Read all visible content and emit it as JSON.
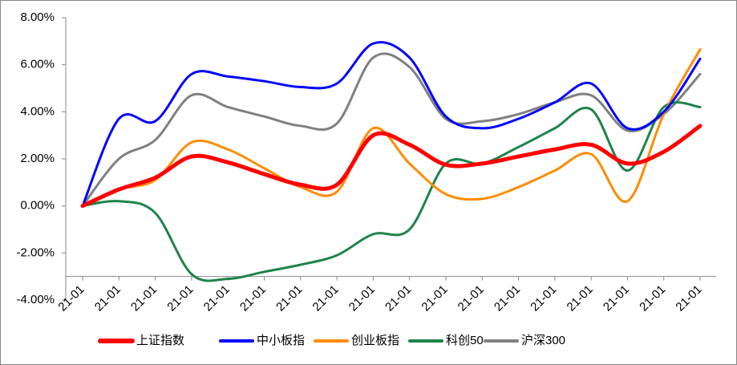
{
  "chart_data": {
    "type": "line",
    "categories": [
      "21-01",
      "21-01",
      "21-01",
      "21-01",
      "21-01",
      "21-01",
      "21-01",
      "21-01",
      "21-01",
      "21-01",
      "21-01",
      "21-01",
      "21-01",
      "21-01",
      "21-01",
      "21-01",
      "21-01",
      "21-01"
    ],
    "series": [
      {
        "name": "上证指数",
        "color": "#ff0000",
        "values": [
          0,
          0.7,
          1.2,
          2.1,
          1.85,
          1.35,
          0.9,
          0.9,
          3.0,
          2.6,
          1.75,
          1.8,
          2.1,
          2.4,
          2.6,
          1.8,
          2.3,
          3.4
        ]
      },
      {
        "name": "中小板指",
        "color": "#0000ff",
        "values": [
          0,
          3.7,
          3.6,
          5.6,
          5.5,
          5.3,
          5.05,
          5.2,
          6.9,
          6.3,
          3.8,
          3.3,
          3.7,
          4.4,
          5.2,
          3.3,
          4.0,
          6.25
        ]
      },
      {
        "name": "创业板指",
        "color": "#ff8c00",
        "values": [
          0,
          0.7,
          1.1,
          2.7,
          2.4,
          1.6,
          0.8,
          0.6,
          3.3,
          1.8,
          0.5,
          0.3,
          0.8,
          1.5,
          2.2,
          0.2,
          3.9,
          6.65
        ]
      },
      {
        "name": "科创50",
        "color": "#1e8449",
        "values": [
          0,
          0.2,
          -0.3,
          -2.9,
          -3.1,
          -2.8,
          -2.5,
          -2.1,
          -1.2,
          -1.0,
          1.8,
          1.8,
          2.5,
          3.3,
          4.1,
          1.5,
          4.2,
          4.2
        ]
      },
      {
        "name": "沪深300",
        "color": "#808080",
        "values": [
          0,
          2.0,
          2.8,
          4.7,
          4.2,
          3.8,
          3.4,
          3.5,
          6.3,
          5.9,
          3.7,
          3.6,
          3.9,
          4.4,
          4.7,
          3.2,
          3.9,
          5.6
        ]
      }
    ],
    "ylim": [
      -4,
      8
    ],
    "yticks": [
      {
        "value": -4,
        "label": "-4.00%"
      },
      {
        "value": -2,
        "label": "-2.00%"
      },
      {
        "value": 0,
        "label": "0.00%"
      },
      {
        "value": 2,
        "label": "2.00%"
      },
      {
        "value": 4,
        "label": "4.00%"
      },
      {
        "value": 6,
        "label": "6.00%"
      },
      {
        "value": 8,
        "label": "8.00%"
      }
    ],
    "x_axis_crossing": -3,
    "legend": "bottom"
  }
}
